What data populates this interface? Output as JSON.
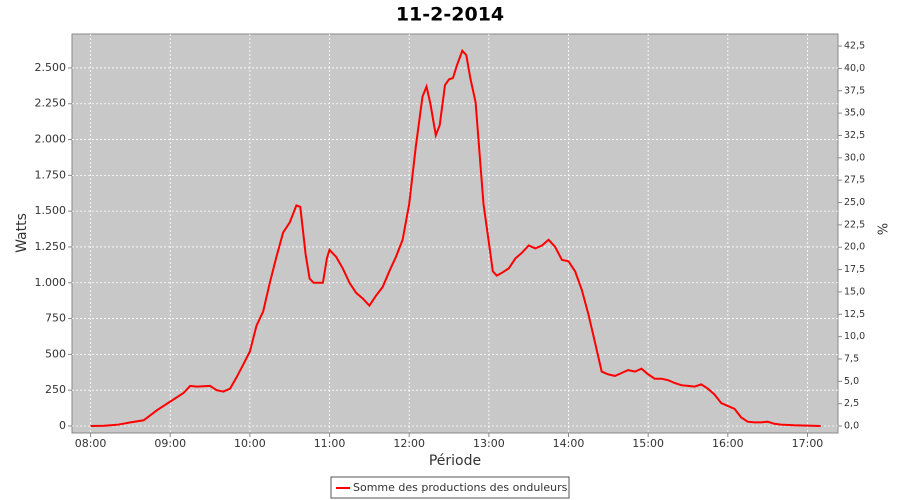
{
  "chart_data": {
    "type": "line",
    "title": "11-2-2014",
    "x_label": "Période",
    "y_label": "Watts",
    "y2_label": "%",
    "x": [
      480,
      490,
      500,
      510,
      520,
      530,
      540,
      550,
      555,
      560,
      570,
      575,
      580,
      585,
      590,
      595,
      600,
      605,
      610,
      615,
      620,
      625,
      630,
      635,
      638,
      642,
      645,
      648,
      655,
      658,
      660,
      665,
      670,
      675,
      680,
      685,
      690,
      695,
      700,
      705,
      710,
      715,
      720,
      725,
      730,
      733,
      736,
      740,
      743,
      747,
      750,
      753,
      756,
      760,
      763,
      766,
      770,
      773,
      776,
      780,
      783,
      786,
      790,
      795,
      800,
      805,
      810,
      815,
      820,
      825,
      830,
      835,
      840,
      845,
      850,
      855,
      860,
      865,
      870,
      875,
      880,
      885,
      890,
      895,
      900,
      905,
      910,
      915,
      920,
      925,
      930,
      935,
      940,
      945,
      950,
      955,
      960,
      965,
      970,
      975,
      980,
      985,
      990,
      995,
      1000,
      1010,
      1020,
      1030
    ],
    "series": [
      {
        "name": "Somme des productions des onduleurs",
        "color": "#ff0000",
        "values": [
          0,
          2,
          8,
          25,
          40,
          110,
          170,
          230,
          280,
          275,
          280,
          250,
          240,
          260,
          340,
          430,
          520,
          700,
          800,
          1000,
          1180,
          1350,
          1420,
          1540,
          1530,
          1200,
          1030,
          1000,
          1000,
          1170,
          1230,
          1180,
          1100,
          1000,
          930,
          890,
          840,
          910,
          970,
          1080,
          1180,
          1300,
          1550,
          1950,
          2300,
          2370,
          2250,
          2030,
          2100,
          2380,
          2420,
          2430,
          2520,
          2620,
          2590,
          2430,
          2260,
          1900,
          1550,
          1280,
          1080,
          1050,
          1070,
          1100,
          1170,
          1210,
          1260,
          1240,
          1260,
          1300,
          1250,
          1160,
          1150,
          1080,
          950,
          780,
          580,
          380,
          360,
          350,
          370,
          390,
          380,
          400,
          360,
          330,
          330,
          320,
          300,
          285,
          280,
          275,
          290,
          260,
          220,
          160,
          140,
          120,
          60,
          30,
          25,
          25,
          30,
          15,
          10,
          5,
          3,
          0
        ]
      }
    ],
    "xlim": [
      466,
      1043
    ],
    "xticks": [
      {
        "value": 480,
        "label": "08:00"
      },
      {
        "value": 540,
        "label": "09:00"
      },
      {
        "value": 600,
        "label": "10:00"
      },
      {
        "value": 660,
        "label": "11:00"
      },
      {
        "value": 720,
        "label": "12:00"
      },
      {
        "value": 780,
        "label": "13:00"
      },
      {
        "value": 840,
        "label": "14:00"
      },
      {
        "value": 900,
        "label": "15:00"
      },
      {
        "value": 960,
        "label": "16:00"
      },
      {
        "value": 1020,
        "label": "17:00"
      }
    ],
    "ylim": [
      -49,
      2737
    ],
    "yticks": [
      0,
      250,
      500,
      750,
      {
        "value": 1000,
        "label": "1.000"
      },
      {
        "value": 1250,
        "label": "1.250"
      },
      {
        "value": 1500,
        "label": "1.500"
      },
      {
        "value": 1750,
        "label": "1.750"
      },
      {
        "value": 2000,
        "label": "2.000"
      },
      {
        "value": 2250,
        "label": "2.250"
      },
      {
        "value": 2500,
        "label": "2.500"
      }
    ],
    "y2lim": [
      -0.78,
      43.85
    ],
    "y2ticks": [
      {
        "value": 0,
        "label": "0,0"
      },
      {
        "value": 2.5,
        "label": "2,5"
      },
      {
        "value": 5,
        "label": "5,0"
      },
      {
        "value": 7.5,
        "label": "7,5"
      },
      {
        "value": 10,
        "label": "10,0"
      },
      {
        "value": 12.5,
        "label": "12,5"
      },
      {
        "value": 15,
        "label": "15,0"
      },
      {
        "value": 17.5,
        "label": "17,5"
      },
      {
        "value": 20,
        "label": "20,0"
      },
      {
        "value": 22.5,
        "label": "22,5"
      },
      {
        "value": 25,
        "label": "25,0"
      },
      {
        "value": 27.5,
        "label": "27,5"
      },
      {
        "value": 30,
        "label": "30,0"
      },
      {
        "value": 32.5,
        "label": "32,5"
      },
      {
        "value": 35,
        "label": "35,0"
      },
      {
        "value": 37.5,
        "label": "37,5"
      },
      {
        "value": 40,
        "label": "40,0"
      },
      {
        "value": 42.5,
        "label": "42,5"
      }
    ],
    "grid": true
  }
}
